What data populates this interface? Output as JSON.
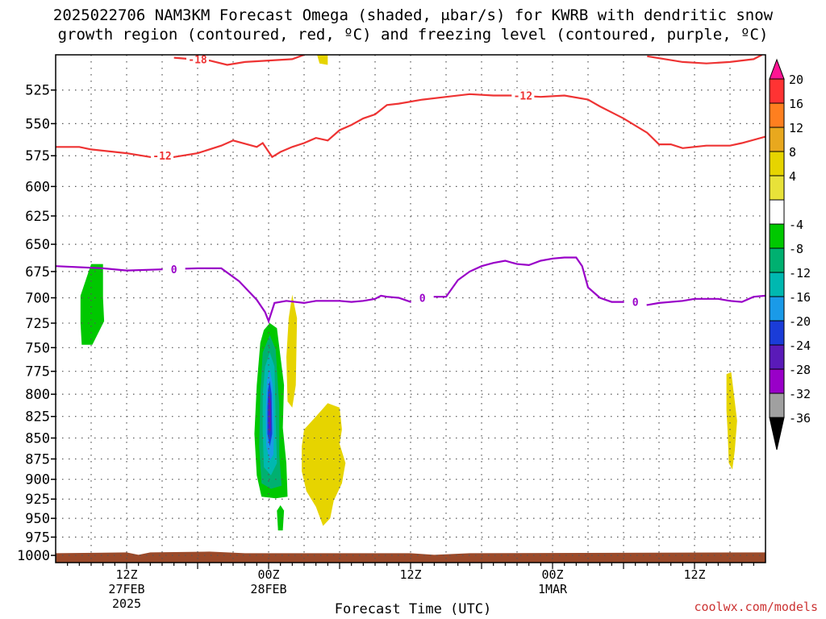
{
  "title_line1": "2025022706 NAM3KM Forecast Omega (shaded, μbar/s) for KWRB with dendritic snow",
  "title_line2": "growth region (contoured, red, ºC) and freezing level (contoured, purple, ºC)",
  "credit": "coolwx.com/models",
  "chart_data": {
    "type": "time-height cross section",
    "xlabel": "Forecast Time (UTC)",
    "ylabel": "",
    "y_axis": {
      "scale": "log-pressure, inverted",
      "unit": "hPa",
      "ticks": [
        525,
        550,
        575,
        600,
        625,
        650,
        675,
        700,
        725,
        750,
        775,
        800,
        825,
        850,
        875,
        900,
        925,
        950,
        975,
        1000
      ],
      "range": [
        500,
        1010
      ]
    },
    "x_axis": {
      "unit": "forecast hour from 2025-02-27 06Z",
      "range": [
        0,
        60
      ],
      "ticks": [
        {
          "hour": 6,
          "lines": [
            "12Z",
            "27FEB",
            "2025"
          ]
        },
        {
          "hour": 18,
          "lines": [
            "00Z",
            "28FEB"
          ]
        },
        {
          "hour": 30,
          "lines": [
            "12Z"
          ]
        },
        {
          "hour": 42,
          "lines": [
            "00Z",
            "1MAR"
          ]
        },
        {
          "hour": 54,
          "lines": [
            "12Z"
          ]
        }
      ],
      "grid": true
    },
    "colorbar": {
      "labels": [
        "20",
        "16",
        "12",
        "8",
        "4",
        "-4",
        "-8",
        "-12",
        "-16",
        "-20",
        "-24",
        "-28",
        "-32",
        "-36"
      ],
      "colors": [
        "#ff1493",
        "#ff3333",
        "#ff7f1f",
        "#e8a81e",
        "#e6d400",
        "#e8e239",
        "#ffffff",
        "#00c800",
        "#00b070",
        "#00b8b0",
        "#1a9ae8",
        "#1a3cd8",
        "#5a1ab8",
        "#9900c8",
        "#a0a0a0",
        "#000000"
      ]
    },
    "contours": [
      {
        "name": "dgz_-12",
        "label": "-12",
        "color": "#ee3333",
        "points": [
          [
            0,
            568
          ],
          [
            2,
            568
          ],
          [
            3,
            570
          ],
          [
            6,
            573
          ],
          [
            8,
            576
          ],
          [
            10,
            576
          ],
          [
            12,
            573
          ],
          [
            14,
            567
          ],
          [
            15,
            563
          ],
          [
            17,
            568
          ],
          [
            17.5,
            565
          ],
          [
            18.3,
            576
          ],
          [
            19,
            572
          ],
          [
            20,
            568
          ],
          [
            21,
            565
          ],
          [
            22,
            561
          ],
          [
            23,
            563
          ],
          [
            24,
            555
          ],
          [
            25,
            551
          ],
          [
            26,
            546
          ],
          [
            27,
            543
          ],
          [
            28,
            536
          ],
          [
            29,
            535
          ],
          [
            31,
            532
          ],
          [
            33,
            530
          ],
          [
            35,
            528
          ],
          [
            37,
            529
          ],
          [
            39,
            529
          ],
          [
            41,
            530
          ],
          [
            43,
            529
          ],
          [
            45,
            532
          ],
          [
            46,
            537
          ],
          [
            48,
            546
          ],
          [
            50,
            557
          ],
          [
            51,
            566
          ],
          [
            52,
            566
          ],
          [
            53,
            569
          ],
          [
            55,
            567
          ],
          [
            57,
            567
          ],
          [
            58,
            565
          ],
          [
            60,
            560
          ]
        ]
      },
      {
        "name": "dgz_-18_a",
        "label": "-18",
        "color": "#ee3333",
        "points": [
          [
            10,
            502
          ],
          [
            13,
            504
          ],
          [
            14.5,
            507
          ],
          [
            16,
            505
          ],
          [
            18,
            504
          ],
          [
            20,
            503
          ],
          [
            21,
            500
          ]
        ]
      },
      {
        "name": "dgz_-18_b",
        "label": "",
        "color": "#ee3333",
        "points": [
          [
            50,
            501
          ],
          [
            53,
            505
          ],
          [
            55,
            506
          ],
          [
            57,
            505
          ],
          [
            59,
            503
          ],
          [
            59.7,
            500
          ]
        ]
      },
      {
        "name": "freezing_level_0",
        "label": "0",
        "color": "#9900c8",
        "points": [
          [
            0,
            670
          ],
          [
            4,
            672
          ],
          [
            6,
            674
          ],
          [
            9,
            673
          ],
          [
            12,
            672
          ],
          [
            14,
            672
          ],
          [
            15.5,
            684
          ],
          [
            17,
            702
          ],
          [
            17.7,
            714
          ],
          [
            18,
            723
          ],
          [
            18.5,
            705
          ],
          [
            19.5,
            703
          ],
          [
            21,
            705
          ],
          [
            22,
            703
          ],
          [
            24,
            703
          ],
          [
            25,
            704
          ],
          [
            26,
            703
          ],
          [
            27,
            701
          ],
          [
            27.5,
            698
          ],
          [
            28,
            699
          ],
          [
            29,
            700
          ],
          [
            30,
            704
          ],
          [
            31,
            700
          ],
          [
            32,
            699
          ],
          [
            33,
            699
          ],
          [
            34,
            683
          ],
          [
            35,
            675
          ],
          [
            36,
            670
          ],
          [
            37,
            667
          ],
          [
            38,
            665
          ],
          [
            39,
            668
          ],
          [
            40,
            669
          ],
          [
            41,
            665
          ],
          [
            42,
            663
          ],
          [
            43,
            662
          ],
          [
            44,
            662
          ],
          [
            44.5,
            670
          ],
          [
            45,
            690
          ],
          [
            46,
            700
          ],
          [
            47,
            704
          ],
          [
            48,
            704
          ],
          [
            49,
            704
          ],
          [
            50,
            707
          ],
          [
            51,
            705
          ],
          [
            53,
            703
          ],
          [
            54,
            701
          ],
          [
            56,
            701
          ],
          [
            57,
            703
          ],
          [
            58,
            704
          ],
          [
            59,
            699
          ],
          [
            60,
            698
          ]
        ]
      }
    ],
    "shaded_regions": [
      {
        "name": "omega_-4_a",
        "level": "-4",
        "color": "#00c800",
        "polygon": [
          [
            2.1,
            698
          ],
          [
            3,
            668
          ],
          [
            4,
            668
          ],
          [
            4,
            700
          ],
          [
            4.1,
            723
          ],
          [
            3.1,
            747
          ],
          [
            2.2,
            747
          ],
          [
            2.1,
            725
          ]
        ]
      },
      {
        "name": "omega_-4_main",
        "level": "-4",
        "color": "#00c800",
        "polygon": [
          [
            17.3,
            745
          ],
          [
            17.6,
            732
          ],
          [
            18.1,
            725
          ],
          [
            18.7,
            730
          ],
          [
            19.3,
            790
          ],
          [
            19.2,
            838
          ],
          [
            19.5,
            880
          ],
          [
            19.6,
            922
          ],
          [
            18.6,
            924
          ],
          [
            17.4,
            922
          ],
          [
            17.0,
            895
          ],
          [
            16.8,
            845
          ],
          [
            17.0,
            790
          ]
        ]
      },
      {
        "name": "omega_-4_small",
        "level": "-4",
        "color": "#00c800",
        "polygon": [
          [
            18.7,
            940
          ],
          [
            19.0,
            933
          ],
          [
            19.3,
            940
          ],
          [
            19.2,
            966
          ],
          [
            18.8,
            966
          ]
        ]
      },
      {
        "name": "omega_-8",
        "level": "-8",
        "color": "#00b070",
        "polygon": [
          [
            17.5,
            755
          ],
          [
            18.1,
            737
          ],
          [
            18.6,
            752
          ],
          [
            18.9,
            812
          ],
          [
            18.9,
            870
          ],
          [
            19.1,
            908
          ],
          [
            18.2,
            912
          ],
          [
            17.4,
            905
          ],
          [
            17.2,
            860
          ],
          [
            17.3,
            800
          ]
        ]
      },
      {
        "name": "omega_-12",
        "level": "-12",
        "color": "#00b8b0",
        "polygon": [
          [
            17.7,
            770
          ],
          [
            18.1,
            755
          ],
          [
            18.5,
            770
          ],
          [
            18.6,
            830
          ],
          [
            18.7,
            880
          ],
          [
            18.2,
            895
          ],
          [
            17.6,
            885
          ],
          [
            17.5,
            840
          ],
          [
            17.5,
            800
          ]
        ]
      },
      {
        "name": "omega_-16",
        "level": "-16",
        "color": "#1a9ae8",
        "polygon": [
          [
            17.85,
            785
          ],
          [
            18.1,
            772
          ],
          [
            18.35,
            790
          ],
          [
            18.45,
            840
          ],
          [
            18.4,
            870
          ],
          [
            18.1,
            877
          ],
          [
            17.8,
            860
          ],
          [
            17.75,
            820
          ]
        ]
      },
      {
        "name": "omega_-20",
        "level": "-20",
        "color": "#1a3cd8",
        "polygon": [
          [
            17.95,
            795
          ],
          [
            18.1,
            785
          ],
          [
            18.25,
            800
          ],
          [
            18.3,
            845
          ],
          [
            18.1,
            860
          ],
          [
            17.9,
            845
          ],
          [
            17.9,
            815
          ]
        ]
      },
      {
        "name": "omega_-24",
        "level": "-24",
        "color": "#5a1ab8",
        "polygon": [
          [
            18.0,
            805
          ],
          [
            18.1,
            798
          ],
          [
            18.2,
            810
          ],
          [
            18.2,
            840
          ],
          [
            18.05,
            845
          ],
          [
            17.98,
            830
          ]
        ]
      },
      {
        "name": "omega_4_a",
        "level": "4",
        "color": "#e6d400",
        "polygon": [
          [
            19.7,
            720
          ],
          [
            20.0,
            697
          ],
          [
            20.4,
            720
          ],
          [
            20.3,
            790
          ],
          [
            20.0,
            815
          ],
          [
            19.6,
            808
          ],
          [
            19.5,
            760
          ]
        ]
      },
      {
        "name": "omega_4_b",
        "level": "4",
        "color": "#e6d400",
        "polygon": [
          [
            21.0,
            840
          ],
          [
            22.0,
            825
          ],
          [
            23.0,
            810
          ],
          [
            24.0,
            815
          ],
          [
            24.2,
            840
          ],
          [
            24.0,
            857
          ],
          [
            24.5,
            880
          ],
          [
            24.2,
            905
          ],
          [
            23.5,
            927
          ],
          [
            23.2,
            950
          ],
          [
            22.6,
            960
          ],
          [
            22.0,
            935
          ],
          [
            21.2,
            915
          ],
          [
            20.8,
            890
          ],
          [
            20.8,
            860
          ]
        ]
      },
      {
        "name": "omega_4_c",
        "level": "4",
        "color": "#e6d400",
        "polygon": [
          [
            56.7,
            778
          ],
          [
            57.1,
            776
          ],
          [
            57.4,
            808
          ],
          [
            57.6,
            830
          ],
          [
            57.4,
            865
          ],
          [
            57.2,
            888
          ],
          [
            56.9,
            880
          ],
          [
            56.8,
            843
          ],
          [
            56.7,
            818
          ]
        ]
      },
      {
        "name": "omega_4_d",
        "level": "4",
        "color": "#e6d400",
        "polygon": [
          [
            22.1,
            500
          ],
          [
            23.0,
            500
          ],
          [
            23.0,
            507
          ],
          [
            22.3,
            506
          ]
        ]
      }
    ],
    "surface": {
      "color": "#9b4a2a",
      "pressure": 997
    }
  }
}
